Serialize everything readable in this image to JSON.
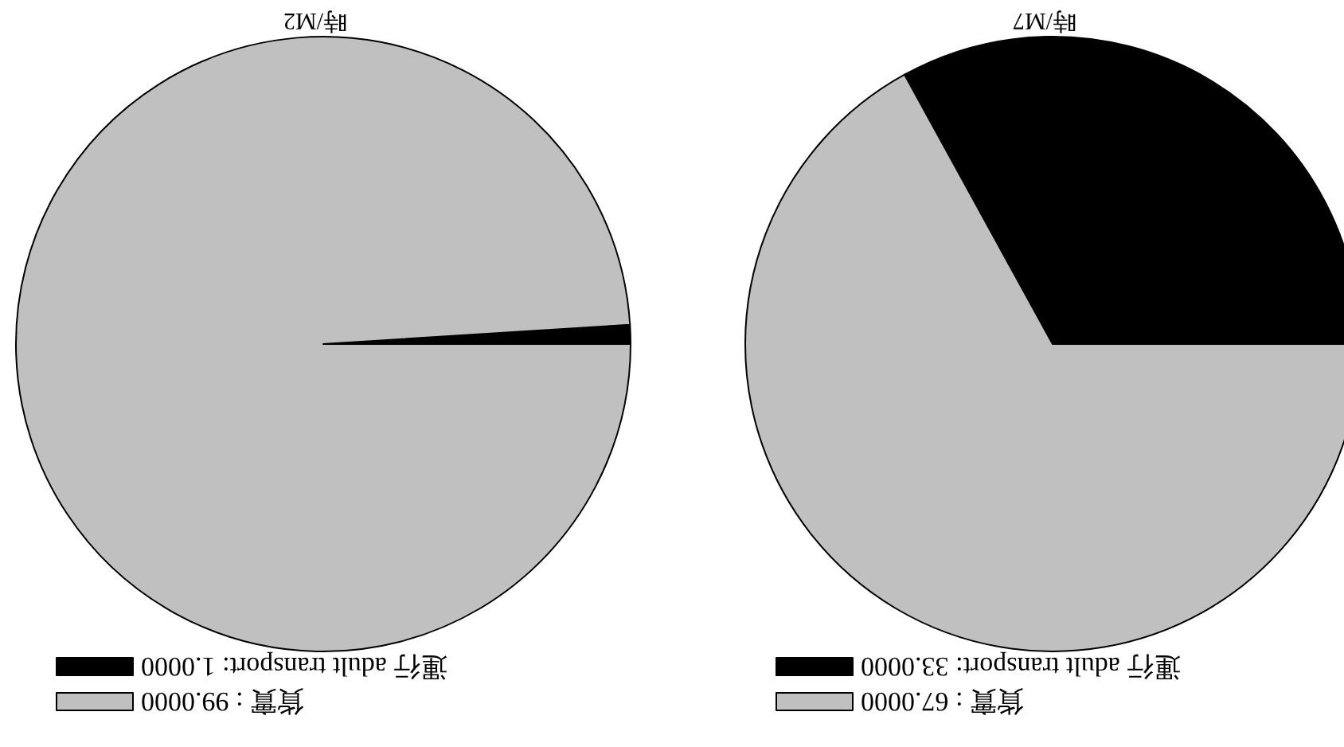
{
  "chart_data": [
    {
      "type": "pie",
      "title": "時/M7",
      "categories": [
        "運行 adult transport: 33.0000",
        "貨實 : 67.0000"
      ],
      "values": [
        33,
        67
      ],
      "colors": [
        "#000000",
        "#c0c0c0"
      ],
      "legend": "bottom left"
    },
    {
      "type": "pie",
      "title": "時/M2",
      "categories": [
        "運行 adult transport: 1.0000",
        "貨實 : 99.0000"
      ],
      "values": [
        1,
        99
      ],
      "colors": [
        "#000000",
        "#c0c0c0"
      ],
      "legend": "bottom left"
    }
  ]
}
